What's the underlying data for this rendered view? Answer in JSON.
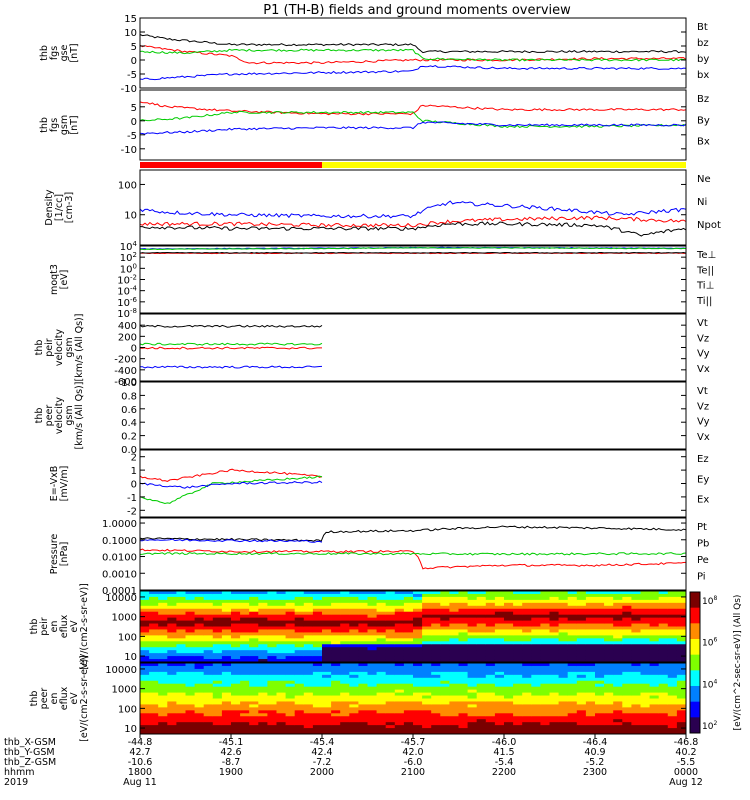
{
  "title": "P1 (TH-B) fields and ground moments overview",
  "time_axis": {
    "tick_labels": [
      {
        "x_gsm": "-44.8",
        "y_gsm": "42.7",
        "z_gsm": "-10.6",
        "hhmm": "1800",
        "date": "Aug 11"
      },
      {
        "x_gsm": "-45.1",
        "y_gsm": "42.6",
        "z_gsm": "-8.7",
        "hhmm": "1900",
        "date": ""
      },
      {
        "x_gsm": "-45.4",
        "y_gsm": "42.4",
        "z_gsm": "-7.2",
        "hhmm": "2000",
        "date": ""
      },
      {
        "x_gsm": "-45.7",
        "y_gsm": "42.0",
        "z_gsm": "-6.0",
        "hhmm": "2100",
        "date": ""
      },
      {
        "x_gsm": "-46.0",
        "y_gsm": "41.5",
        "z_gsm": "-5.4",
        "hhmm": "2200",
        "date": ""
      },
      {
        "x_gsm": "-46.4",
        "y_gsm": "40.9",
        "z_gsm": "-5.2",
        "hhmm": "2300",
        "date": ""
      },
      {
        "x_gsm": "-46.8",
        "y_gsm": "40.2",
        "z_gsm": "-5.5",
        "hhmm": "0000",
        "date": "Aug 12"
      }
    ],
    "row_labels": [
      "thb_X-GSM",
      "thb_Y-GSM",
      "thb_Z-GSM",
      "hhmm",
      "2019"
    ]
  },
  "colorbar": {
    "label": "[eV/(cm^2-sec-sr-eV)] (All Qs)",
    "tick_labels": [
      "10^8",
      "10^6",
      "10^4",
      "10^2"
    ],
    "colors": [
      "#7a0000",
      "#ff0000",
      "#ff8c00",
      "#ffff00",
      "#7fff00",
      "#00ffff",
      "#0080ff",
      "#0000ff",
      "#2a0050"
    ]
  },
  "chart_data": [
    {
      "id": "fgs-gse",
      "type": "line",
      "ylabel": [
        "thb",
        "fgs",
        "gse",
        "[nT]"
      ],
      "ylim": [
        -10,
        15
      ],
      "yticks": [
        "15",
        "10",
        "5",
        "0",
        "-5",
        "-10"
      ],
      "legend": [
        "Bt",
        "bz",
        "by",
        "bx"
      ],
      "series": [
        {
          "name": "Bt",
          "color": "#000000",
          "x": [
            18.0,
            18.3,
            19.0,
            20.0,
            21.0,
            21.1,
            22.0,
            23.0,
            24.0
          ],
          "y": [
            9,
            7.5,
            5.5,
            5.5,
            5.5,
            3,
            3,
            3,
            3
          ]
        },
        {
          "name": "bz",
          "color": "#ff0000",
          "x": [
            18.0,
            18.5,
            19.0,
            19.2,
            20.0,
            21.0,
            21.1,
            22.0,
            23.0,
            24.0
          ],
          "y": [
            5,
            3,
            1.5,
            -1,
            -1,
            0,
            0,
            0,
            0.5,
            0.5
          ]
        },
        {
          "name": "by",
          "color": "#00cc00",
          "x": [
            18.0,
            18.5,
            19.0,
            20.0,
            21.0,
            21.1,
            22.0,
            23.0,
            24.0
          ],
          "y": [
            3,
            2.5,
            3.5,
            3.5,
            3.5,
            0.5,
            0,
            0,
            0
          ]
        },
        {
          "name": "bx",
          "color": "#0000ff",
          "x": [
            18.0,
            18.5,
            19.0,
            20.0,
            21.0,
            21.1,
            22.0,
            23.0,
            24.0
          ],
          "y": [
            -7,
            -6,
            -5,
            -4.5,
            -4,
            -2,
            -3,
            -3,
            -3
          ]
        }
      ]
    },
    {
      "id": "fgs-gsm",
      "type": "line",
      "ylabel": [
        "thb",
        "fgs",
        "gsm",
        "[nT]"
      ],
      "ylim": [
        -14,
        11
      ],
      "yticks": [
        "5",
        "0",
        "-5",
        "-10"
      ],
      "legend": [
        "Bz",
        "By",
        "Bx"
      ],
      "series": [
        {
          "name": "Bz",
          "color": "#ff0000",
          "x": [
            18.0,
            18.3,
            19.0,
            20.0,
            21.0,
            21.1,
            22.0,
            23.0,
            24.0
          ],
          "y": [
            7,
            5,
            3.5,
            2.5,
            2.5,
            5.5,
            4,
            4,
            4
          ]
        },
        {
          "name": "By",
          "color": "#00cc00",
          "x": [
            18.0,
            18.5,
            19.0,
            20.0,
            21.0,
            21.1,
            22.0,
            23.0,
            24.0
          ],
          "y": [
            0,
            1,
            3,
            3,
            3,
            0,
            -2,
            -2,
            -1.5
          ]
        },
        {
          "name": "Bx",
          "color": "#0000ff",
          "x": [
            18.0,
            18.5,
            19.0,
            20.0,
            21.0,
            21.1,
            22.0,
            23.0,
            24.0
          ],
          "y": [
            -4.5,
            -4,
            -3,
            -2.5,
            -2.5,
            -0.5,
            -1.5,
            -1.5,
            -1.5
          ]
        }
      ]
    },
    {
      "id": "mode-bar",
      "type": "bar",
      "segments": [
        {
          "x_start": 18.0,
          "x_end": 20.0,
          "color": "#ff0000"
        },
        {
          "x_start": 20.0,
          "x_end": 24.0,
          "color": "#ffff00"
        }
      ]
    },
    {
      "id": "density",
      "type": "line",
      "yscale": "log",
      "ylabel": [
        "Density",
        "[1/cc]",
        "[cm-3]"
      ],
      "ylim": [
        1,
        300
      ],
      "yticks": [
        "100",
        "10"
      ],
      "legend": [
        "Ne",
        "Ni",
        "Npot"
      ],
      "series": [
        {
          "name": "Ne",
          "color": "#ff0000",
          "x": [
            18.0,
            19.0,
            20.0,
            21.0,
            21.4,
            22.0,
            23.0,
            24.0
          ],
          "y": [
            5,
            5,
            4.5,
            4.5,
            6,
            7,
            8,
            6
          ]
        },
        {
          "name": "Ni",
          "color": "#000000",
          "x": [
            18.0,
            19.0,
            20.0,
            21.0,
            21.4,
            22.0,
            23.0,
            23.3,
            23.5,
            24.0
          ],
          "y": [
            4,
            3.5,
            3.5,
            3.5,
            5,
            5,
            4.5,
            3,
            2,
            3.5
          ]
        },
        {
          "name": "Npot",
          "color": "#0000ff",
          "x": [
            18.0,
            18.3,
            19.0,
            20.0,
            21.0,
            21.4,
            22.0,
            23.0,
            23.3,
            24.0
          ],
          "y": [
            15,
            12,
            10,
            9,
            9,
            25,
            20,
            12,
            10,
            15
          ]
        }
      ]
    },
    {
      "id": "moqt3",
      "type": "line",
      "yscale": "log",
      "ylabel": [
        "moqt3",
        "[eV]"
      ],
      "ylim": [
        1e-08,
        10000.0
      ],
      "yticks": [
        "10^4",
        "10^2",
        "10^0",
        "10^-2",
        "10^-4",
        "10^-6",
        "10^-8"
      ],
      "legend": [
        "Te⊥",
        "Te||",
        "Ti⊥",
        "Ti||"
      ],
      "series": [
        {
          "name": "Te⊥",
          "color": "#ff0000",
          "x": [
            18.0,
            24.0
          ],
          "y": [
            500,
            500
          ]
        },
        {
          "name": "Te||",
          "color": "#000000",
          "x": [
            18.0,
            24.0
          ],
          "y": [
            600,
            600
          ]
        },
        {
          "name": "Ti⊥",
          "color": "#0000ff",
          "x": [
            18.0,
            20.0,
            21.0,
            22.0,
            24.0
          ],
          "y": [
            3000,
            4000,
            5000,
            5000,
            4000
          ]
        },
        {
          "name": "Ti||",
          "color": "#00cc00",
          "x": [
            18.0,
            20.0,
            21.0,
            22.0,
            24.0
          ],
          "y": [
            2500,
            3500,
            4500,
            4500,
            3500
          ]
        }
      ]
    },
    {
      "id": "peir-velocity",
      "type": "line",
      "ylabel": [
        "thb",
        "peir",
        "velocity",
        "gsm",
        "[km/s (All Qs)]"
      ],
      "ylim": [
        -600,
        600
      ],
      "yticks": [
        "400",
        "200",
        "0",
        "-200",
        "-400",
        "-600"
      ],
      "legend": [
        "Vt",
        "Vz",
        "Vy",
        "Vx"
      ],
      "series": [
        {
          "name": "Vt",
          "color": "#000000",
          "x": [
            18.0,
            20.0
          ],
          "y": [
            380,
            380
          ]
        },
        {
          "name": "Vz",
          "color": "#ff0000",
          "x": [
            18.0,
            20.0
          ],
          "y": [
            -10,
            -10
          ]
        },
        {
          "name": "Vy",
          "color": "#00cc00",
          "x": [
            18.0,
            20.0
          ],
          "y": [
            60,
            60
          ]
        },
        {
          "name": "Vx",
          "color": "#0000ff",
          "x": [
            18.0,
            20.0
          ],
          "y": [
            -350,
            -350
          ]
        }
      ]
    },
    {
      "id": "peer-velocity",
      "type": "line",
      "ylabel": [
        "thb",
        "peer",
        "velocity",
        "gsm",
        "[km/s (All Qs)]"
      ],
      "ylim": [
        0,
        1.0
      ],
      "yticks": [
        "1.0",
        "0.8",
        "0.6",
        "0.4",
        "0.2",
        "0.0"
      ],
      "legend": [
        "Vt",
        "Vz",
        "Vy",
        "Vx"
      ],
      "series": []
    },
    {
      "id": "e-field",
      "type": "line",
      "ylabel": [
        "E=-VxB",
        "[mV/m]"
      ],
      "ylim": [
        -2.5,
        2.5
      ],
      "yticks": [
        "2",
        "1",
        "0",
        "-1",
        "-2"
      ],
      "legend": [
        "Ez",
        "Ey",
        "Ex"
      ],
      "series": [
        {
          "name": "Ez",
          "color": "#ff0000",
          "x": [
            18.0,
            18.3,
            19.0,
            19.5,
            20.0
          ],
          "y": [
            0.5,
            0.2,
            1.0,
            0.8,
            0.5
          ]
        },
        {
          "name": "Ey",
          "color": "#00cc00",
          "x": [
            18.0,
            18.3,
            18.8,
            19.3,
            20.0
          ],
          "y": [
            -1.0,
            -1.5,
            0.0,
            0.2,
            0.5
          ]
        },
        {
          "name": "Ex",
          "color": "#0000ff",
          "x": [
            18.0,
            18.5,
            19.0,
            20.0
          ],
          "y": [
            0,
            -0.3,
            0,
            0.1
          ]
        }
      ]
    },
    {
      "id": "pressure",
      "type": "line",
      "yscale": "log",
      "ylabel": [
        "Pressure",
        "[nPa]"
      ],
      "ylim": [
        0.0001,
        2
      ],
      "yticks": [
        "1.0000",
        "0.1000",
        "0.0100",
        "0.0010",
        "0.0001"
      ],
      "legend": [
        "Pt",
        "Pb",
        "Pe",
        "Pi"
      ],
      "series": [
        {
          "name": "Pt",
          "color": "#000000",
          "x": [
            18.0,
            20.0,
            20.05,
            21.0,
            22.0,
            23.0,
            24.0
          ],
          "y": [
            0.12,
            0.09,
            0.3,
            0.35,
            0.6,
            0.5,
            0.4
          ]
        },
        {
          "name": "Pb",
          "color": "#ff0000",
          "x": [
            18.0,
            19.0,
            20.0,
            21.0,
            21.1,
            22.0,
            23.0,
            24.0
          ],
          "y": [
            0.025,
            0.02,
            0.02,
            0.02,
            0.002,
            0.003,
            0.003,
            0.004
          ]
        },
        {
          "name": "Pe",
          "color": "#00cc00",
          "x": [
            18.0,
            20.0,
            22.0,
            24.0
          ],
          "y": [
            0.015,
            0.015,
            0.014,
            0.015
          ]
        },
        {
          "name": "Pi",
          "color": "#0000ff",
          "x": [
            18.0,
            20.0
          ],
          "y": [
            0.1,
            0.08
          ]
        }
      ]
    },
    {
      "id": "peir-spectrogram",
      "type": "heatmap",
      "yscale": "log",
      "ylabel": [
        "thb",
        "peir",
        "en",
        "eflux",
        "eV",
        "[eV/(cm2-s-sr-eV)]"
      ],
      "ylim": [
        5,
        20000
      ],
      "yticks": [
        "10000",
        "1000",
        "100",
        "10"
      ]
    },
    {
      "id": "peer-spectrogram",
      "type": "heatmap",
      "yscale": "log",
      "ylabel": [
        "thb",
        "peer",
        "en",
        "eflux",
        "eV",
        "[eV/(cm2-s-sr-eV)]"
      ],
      "ylim": [
        5,
        20000
      ],
      "yticks": [
        "10000",
        "1000",
        "100",
        "10"
      ]
    }
  ]
}
